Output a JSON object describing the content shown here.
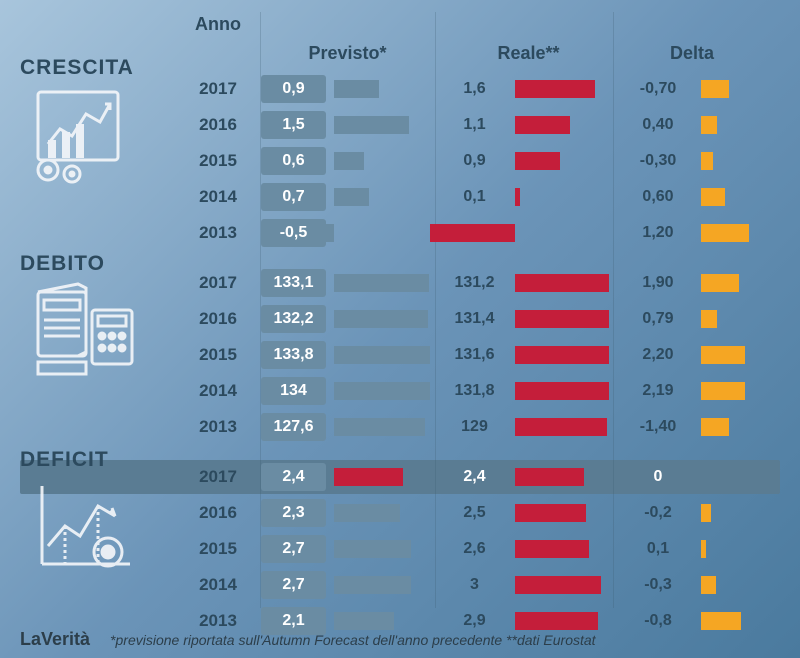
{
  "headers": {
    "year": "Anno",
    "previsto": "Previsto*",
    "reale": "Reale**",
    "delta": "Delta"
  },
  "colors": {
    "bar_previsto": "#6a8ca3",
    "bar_reale": "#c41e3a",
    "bar_delta": "#f5a623",
    "pill_bg": "#6a8ca3",
    "text_dark": "#2c4a5e",
    "highlight_bg": "#5a7c93"
  },
  "bar_scales": {
    "crescita_previsto_max": 2.0,
    "crescita_reale_max": 2.0,
    "crescita_delta_max": 1.5,
    "debito_previsto_max": 140,
    "debito_reale_max": 140,
    "debito_delta_max": 3.0,
    "deficit_previsto_max": 3.5,
    "deficit_reale_max": 3.5,
    "deficit_delta_max": 1.2
  },
  "sections": [
    {
      "title": "CRESCITA",
      "icon": "chart-gears",
      "rows": [
        {
          "year": "2017",
          "previsto": "0,9",
          "previsto_v": 0.9,
          "reale": "1,6",
          "reale_v": 1.6,
          "delta": "-0,70",
          "delta_v": 0.7
        },
        {
          "year": "2016",
          "previsto": "1,5",
          "previsto_v": 1.5,
          "reale": "1,1",
          "reale_v": 1.1,
          "delta": "0,40",
          "delta_v": 0.4
        },
        {
          "year": "2015",
          "previsto": "0,6",
          "previsto_v": 0.6,
          "reale": "0,9",
          "reale_v": 0.9,
          "delta": "-0,30",
          "delta_v": 0.3
        },
        {
          "year": "2014",
          "previsto": "0,7",
          "previsto_v": 0.7,
          "reale": "0,1",
          "reale_v": 0.1,
          "delta": "0,60",
          "delta_v": 0.6
        },
        {
          "year": "2013",
          "previsto": "-0,5",
          "previsto_v": 0.5,
          "previsto_neg": true,
          "reale": "-1,7",
          "reale_v": 1.7,
          "reale_neg": true,
          "delta": "1,20",
          "delta_v": 1.2
        }
      ]
    },
    {
      "title": "DEBITO",
      "icon": "calculator",
      "rows": [
        {
          "year": "2017",
          "previsto": "133,1",
          "previsto_v": 133.1,
          "reale": "131,2",
          "reale_v": 131.2,
          "delta": "1,90",
          "delta_v": 1.9
        },
        {
          "year": "2016",
          "previsto": "132,2",
          "previsto_v": 132.2,
          "reale": "131,4",
          "reale_v": 131.4,
          "delta": "0,79",
          "delta_v": 0.79
        },
        {
          "year": "2015",
          "previsto": "133,8",
          "previsto_v": 133.8,
          "reale": "131,6",
          "reale_v": 131.6,
          "delta": "2,20",
          "delta_v": 2.2
        },
        {
          "year": "2014",
          "previsto": "134",
          "previsto_v": 134,
          "reale": "131,8",
          "reale_v": 131.8,
          "delta": "2,19",
          "delta_v": 2.19
        },
        {
          "year": "2013",
          "previsto": "127,6",
          "previsto_v": 127.6,
          "reale": "129",
          "reale_v": 129,
          "delta": "-1,40",
          "delta_v": 1.4
        }
      ]
    },
    {
      "title": "DEFICIT",
      "icon": "line-chart",
      "highlight_first": true,
      "rows": [
        {
          "year": "2017",
          "previsto": "2,4",
          "previsto_v": 2.4,
          "reale": "2,4",
          "reale_v": 2.4,
          "delta": "0",
          "delta_v": 0,
          "highlighted": true,
          "previsto_red": true
        },
        {
          "year": "2016",
          "previsto": "2,3",
          "previsto_v": 2.3,
          "reale": "2,5",
          "reale_v": 2.5,
          "delta": "-0,2",
          "delta_v": 0.2
        },
        {
          "year": "2015",
          "previsto": "2,7",
          "previsto_v": 2.7,
          "reale": "2,6",
          "reale_v": 2.6,
          "delta": "0,1",
          "delta_v": 0.1
        },
        {
          "year": "2014",
          "previsto": "2,7",
          "previsto_v": 2.7,
          "reale": "3",
          "reale_v": 3.0,
          "delta": "-0,3",
          "delta_v": 0.3
        },
        {
          "year": "2013",
          "previsto": "2,1",
          "previsto_v": 2.1,
          "reale": "2,9",
          "reale_v": 2.9,
          "delta": "-0,8",
          "delta_v": 0.8
        }
      ]
    }
  ],
  "footer": {
    "source": "LaVerità",
    "note": "*previsione riportata sull'Autumn Forecast dell'anno precedente **dati Eurostat"
  }
}
